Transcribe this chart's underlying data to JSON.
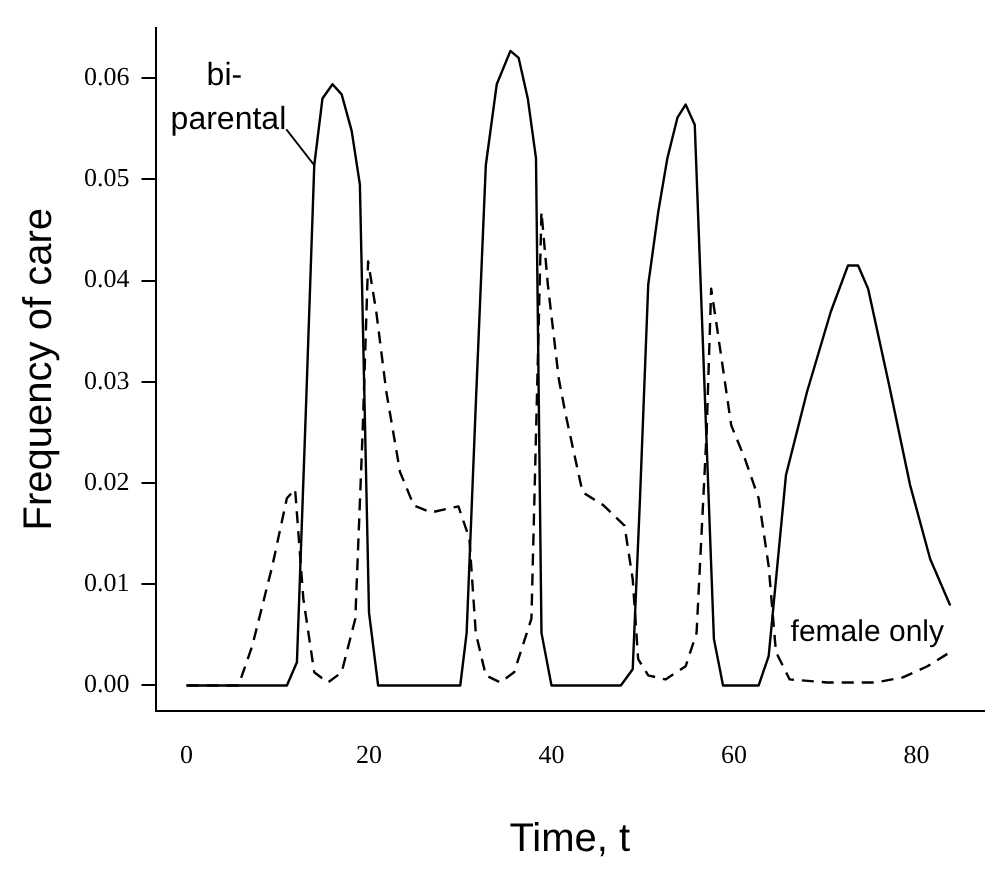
{
  "chart_data": {
    "type": "line",
    "xlabel": "Time, t",
    "ylabel": "Frequency of care",
    "xlim": [
      -3.4,
      87.4
    ],
    "ylim": [
      -0.0025,
      0.065
    ],
    "xticks": [
      0,
      20,
      40,
      60,
      80
    ],
    "yticks": [
      {
        "value": 0,
        "label": "0.00"
      },
      0.01,
      0.02,
      0.03,
      0.04,
      0.05,
      0.06
    ],
    "grid": false,
    "legend": false,
    "marker": "none",
    "series": [
      {
        "name": "bi-parental",
        "color": "#000000",
        "line_style": "solid",
        "x": [
          0,
          11,
          12.1,
          13.1,
          14,
          14.9,
          16,
          17,
          18.1,
          19,
          20,
          21,
          30,
          30.7,
          31.7,
          32.8,
          34,
          35.5,
          36.4,
          37.4,
          38.3,
          38.9,
          40,
          47.6,
          48.9,
          49.7,
          50.6,
          51.7,
          52.7,
          53.8,
          54.7,
          55.7,
          57.8,
          58.8,
          62.7,
          63.8,
          65.7,
          68,
          70.6,
          72.5,
          73.6,
          74.7,
          77,
          79.3,
          81.5,
          83.7
        ],
        "values": [
          0,
          0,
          0.0023,
          0.0277,
          0.0514,
          0.058,
          0.0594,
          0.0584,
          0.0548,
          0.0495,
          0.0072,
          0,
          0,
          0.0052,
          0.0277,
          0.0514,
          0.0594,
          0.0627,
          0.062,
          0.058,
          0.0521,
          0.0052,
          0,
          0,
          0.0016,
          0.0185,
          0.0396,
          0.0468,
          0.0521,
          0.0561,
          0.0574,
          0.0554,
          0.0046,
          0,
          0,
          0.0029,
          0.0208,
          0.029,
          0.0369,
          0.0415,
          0.0415,
          0.0392,
          0.0297,
          0.0198,
          0.0125,
          0.0079
        ]
      },
      {
        "name": "female only",
        "color": "#000000",
        "line_style": "dashed",
        "x": [
          0,
          5.7,
          7.2,
          9.4,
          11,
          11.9,
          12.8,
          14,
          15.5,
          17,
          18.5,
          19.3,
          19.9,
          20.8,
          21.9,
          23.4,
          24.9,
          26.8,
          29.8,
          31,
          31.7,
          32.8,
          34.4,
          35.9,
          37.8,
          38.4,
          38.9,
          39.6,
          40.8,
          41.5,
          43.4,
          45.7,
          48,
          48.9,
          49.5,
          50.6,
          52.5,
          54.7,
          55.9,
          57,
          57.5,
          58.1,
          59.7,
          61.2,
          62.7,
          63.8,
          64.6,
          66.1,
          70.2,
          75.5,
          78.5,
          81.2,
          83.7
        ],
        "values": [
          0,
          0,
          0.0039,
          0.0118,
          0.0185,
          0.0194,
          0.0086,
          0.0013,
          0.0003,
          0.0013,
          0.0066,
          0.025,
          0.0419,
          0.0369,
          0.029,
          0.0211,
          0.0178,
          0.0171,
          0.0177,
          0.0145,
          0.0052,
          0.001,
          0.0003,
          0.0013,
          0.0066,
          0.0284,
          0.0468,
          0.0396,
          0.0303,
          0.027,
          0.0191,
          0.0178,
          0.0158,
          0.0105,
          0.0026,
          0.001,
          0.0006,
          0.0019,
          0.0052,
          0.025,
          0.0392,
          0.0356,
          0.0257,
          0.0224,
          0.0185,
          0.0118,
          0.0033,
          0.0006,
          0.0003,
          0.0003,
          0.0008,
          0.0019,
          0.0033
        ]
      }
    ]
  }
}
